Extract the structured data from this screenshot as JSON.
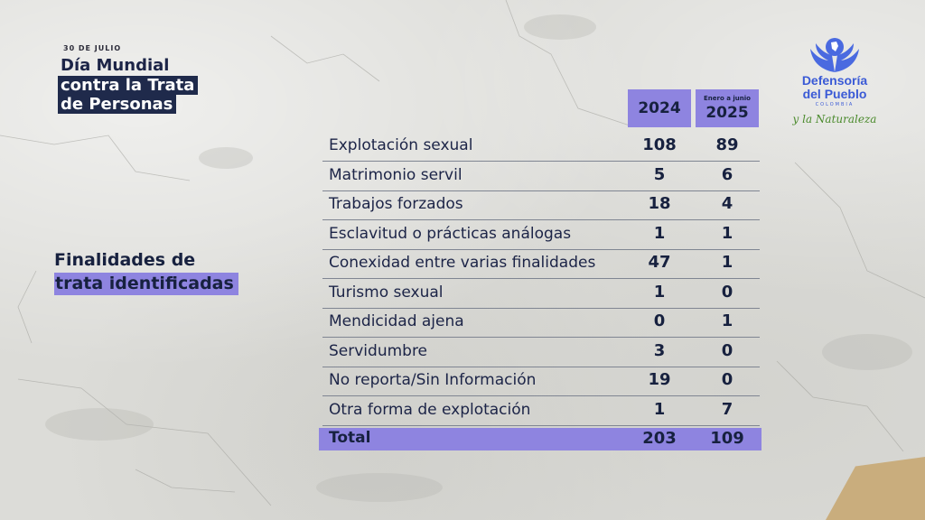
{
  "header": {
    "date": "30 DE JULIO",
    "title_lines": [
      "Día Mundial",
      "contra la Trata",
      "de Personas"
    ]
  },
  "logo": {
    "line1": "Defensoría",
    "line2": "del Pueblo",
    "country": "COLOMBIA",
    "tagline": "y la Naturaleza"
  },
  "section": {
    "line1": "Finalidades de",
    "line2": "trata identificadas"
  },
  "chart_data": {
    "type": "table",
    "columns": [
      {
        "sub": "",
        "year": "2024"
      },
      {
        "sub": "Enero a junio",
        "year": "2025"
      }
    ],
    "rows": [
      {
        "label": "Explotación sexual",
        "v2024": "108",
        "v2025": "89"
      },
      {
        "label": "Matrimonio servil",
        "v2024": "5",
        "v2025": "6"
      },
      {
        "label": "Trabajos forzados",
        "v2024": "18",
        "v2025": "4"
      },
      {
        "label": "Esclavitud o prácticas análogas",
        "v2024": "1",
        "v2025": "1"
      },
      {
        "label": "Conexidad entre varias finalidades",
        "v2024": "47",
        "v2025": "1"
      },
      {
        "label": "Turismo sexual",
        "v2024": "1",
        "v2025": "0"
      },
      {
        "label": "Mendicidad ajena",
        "v2024": "0",
        "v2025": "1"
      },
      {
        "label": "Servidumbre",
        "v2024": "3",
        "v2025": "0"
      },
      {
        "label": "No reporta/Sin Información",
        "v2024": "19",
        "v2025": "0"
      },
      {
        "label": "Otra forma de explotación",
        "v2024": "1",
        "v2025": "7"
      }
    ],
    "total": {
      "label": "Total",
      "v2024": "203",
      "v2025": "109"
    }
  },
  "colors": {
    "accent": "#8e84e0",
    "navy": "#1f2a4b",
    "logo_blue": "#3a5ad6",
    "logo_green": "#4a8a2c"
  }
}
